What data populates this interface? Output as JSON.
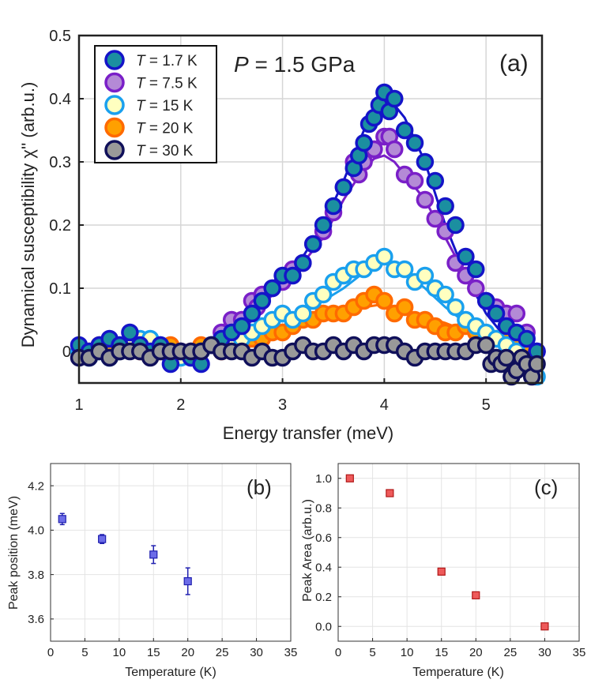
{
  "chart_data": [
    {
      "id": "a",
      "type": "scatter",
      "panel_label": "(a)",
      "annotation_prefix": "P",
      "annotation_value": " = 1.5 GPa",
      "xlabel": "Energy transfer (meV)",
      "ylabel": "Dynamical susceptibility χ'' (arb.u.)",
      "xlim": [
        1,
        5.55
      ],
      "ylim": [
        -0.05,
        0.5
      ],
      "xticks": [
        1,
        2,
        3,
        4,
        5
      ],
      "yticks": [
        0,
        0.1,
        0.2,
        0.3,
        0.4,
        0.5
      ],
      "ytick_labels": [
        "0",
        "0.1",
        "0.2",
        "0.3",
        "0.4",
        "0.5"
      ],
      "grid": true,
      "legend_position": "top-left",
      "series": [
        {
          "name": "1.7 K",
          "T_label": "T",
          "T_value": " =  1.7 K",
          "fill": "#1b8fa0",
          "edge": "#1414c8",
          "line": "#1414c8",
          "x": [
            1.0,
            1.1,
            1.2,
            1.3,
            1.4,
            1.5,
            1.6,
            1.7,
            1.8,
            1.9,
            2.0,
            2.1,
            2.2,
            2.3,
            2.4,
            2.5,
            2.6,
            2.7,
            2.8,
            2.9,
            3.0,
            3.1,
            3.2,
            3.3,
            3.4,
            3.5,
            3.6,
            3.7,
            3.75,
            3.8,
            3.85,
            3.9,
            3.95,
            4.0,
            4.05,
            4.1,
            4.2,
            4.3,
            4.4,
            4.5,
            4.6,
            4.7,
            4.8,
            4.9,
            5.0,
            5.1,
            5.2,
            5.3,
            5.4,
            5.5
          ],
          "y": [
            0.01,
            0.0,
            0.01,
            0.02,
            0.01,
            0.03,
            0.01,
            0.0,
            0.01,
            -0.02,
            0.0,
            -0.01,
            -0.02,
            0.01,
            0.02,
            0.03,
            0.04,
            0.06,
            0.08,
            0.1,
            0.12,
            0.12,
            0.14,
            0.17,
            0.2,
            0.23,
            0.26,
            0.29,
            0.31,
            0.33,
            0.36,
            0.37,
            0.39,
            0.41,
            0.38,
            0.4,
            0.35,
            0.33,
            0.3,
            0.27,
            0.23,
            0.2,
            0.15,
            0.13,
            0.08,
            0.06,
            0.04,
            0.03,
            0.02,
            0.0
          ],
          "fit_x": [
            1.0,
            2.4,
            2.6,
            2.8,
            3.0,
            3.2,
            3.4,
            3.6,
            3.8,
            3.9,
            4.0,
            4.1,
            4.2,
            4.4,
            4.6,
            4.8,
            5.0,
            5.2,
            5.5
          ],
          "fit_y": [
            0.0,
            0.0,
            0.03,
            0.07,
            0.12,
            0.15,
            0.2,
            0.27,
            0.35,
            0.38,
            0.395,
            0.39,
            0.37,
            0.3,
            0.2,
            0.12,
            0.06,
            0.02,
            0.0
          ]
        },
        {
          "name": "7.5 K",
          "T_label": "T",
          "T_value": " =  7.5 K",
          "fill": "#b48ad6",
          "edge": "#7a1fc8",
          "line": "#7a1fc8",
          "x": [
            2.4,
            2.5,
            2.6,
            2.7,
            2.75,
            2.8,
            2.9,
            3.0,
            3.1,
            3.2,
            3.3,
            3.4,
            3.5,
            3.6,
            3.7,
            3.75,
            3.8,
            3.9,
            4.0,
            4.05,
            4.1,
            4.2,
            4.3,
            4.4,
            4.5,
            4.6,
            4.7,
            4.8,
            4.9,
            5.0,
            5.1,
            5.2,
            5.3,
            5.4,
            5.5
          ],
          "y": [
            0.03,
            0.05,
            0.05,
            0.08,
            0.07,
            0.09,
            0.1,
            0.11,
            0.13,
            0.14,
            0.17,
            0.19,
            0.22,
            0.26,
            0.3,
            0.28,
            0.3,
            0.32,
            0.34,
            0.34,
            0.32,
            0.28,
            0.27,
            0.24,
            0.21,
            0.19,
            0.14,
            0.12,
            0.1,
            0.08,
            0.07,
            0.06,
            0.06,
            0.03,
            0.0
          ],
          "fit_x": [
            1.0,
            2.4,
            2.6,
            2.8,
            3.0,
            3.2,
            3.4,
            3.6,
            3.8,
            3.9,
            4.0,
            4.1,
            4.2,
            4.4,
            4.6,
            4.8,
            5.0,
            5.2,
            5.5
          ],
          "fit_y": [
            0.0,
            0.0,
            0.03,
            0.07,
            0.11,
            0.14,
            0.18,
            0.24,
            0.29,
            0.305,
            0.31,
            0.3,
            0.28,
            0.24,
            0.18,
            0.12,
            0.07,
            0.04,
            0.0
          ]
        },
        {
          "name": "15 K",
          "T_label": "T",
          "T_value": " =  15 K",
          "fill": "#ffffc0",
          "edge": "#1aa0ee",
          "line": "#1aa0ee",
          "x": [
            1.0,
            1.1,
            1.2,
            1.3,
            1.4,
            1.5,
            1.6,
            1.7,
            1.8,
            1.9,
            2.0,
            2.1,
            2.2,
            2.3,
            2.4,
            2.5,
            2.6,
            2.7,
            2.8,
            2.9,
            3.0,
            3.1,
            3.2,
            3.3,
            3.4,
            3.5,
            3.6,
            3.7,
            3.8,
            3.9,
            4.0,
            4.1,
            4.2,
            4.3,
            4.4,
            4.5,
            4.6,
            4.7,
            4.8,
            4.9,
            5.0,
            5.1,
            5.2,
            5.3,
            5.4,
            5.5
          ],
          "y": [
            0.0,
            -0.01,
            0.0,
            -0.01,
            0.0,
            0.01,
            0.02,
            0.02,
            0.01,
            -0.01,
            -0.01,
            -0.01,
            0.0,
            0.01,
            0.01,
            0.02,
            0.02,
            0.03,
            0.04,
            0.05,
            0.06,
            0.05,
            0.06,
            0.08,
            0.09,
            0.11,
            0.12,
            0.13,
            0.13,
            0.14,
            0.15,
            0.13,
            0.13,
            0.11,
            0.12,
            0.1,
            0.09,
            0.07,
            0.05,
            0.04,
            0.03,
            0.02,
            0.01,
            0.0,
            -0.02,
            -0.04
          ],
          "fit_x": [
            1.0,
            2.5,
            2.8,
            3.0,
            3.2,
            3.4,
            3.6,
            3.8,
            4.0,
            4.2,
            4.4,
            4.6,
            4.8,
            5.0,
            5.3,
            5.5
          ],
          "fit_y": [
            0.0,
            0.0,
            0.02,
            0.04,
            0.06,
            0.08,
            0.1,
            0.125,
            0.14,
            0.125,
            0.1,
            0.07,
            0.045,
            0.02,
            0.0,
            0.0
          ]
        },
        {
          "name": "20 K",
          "T_label": "T",
          "T_value": " =  20 K",
          "fill": "#ffa000",
          "edge": "#ff6a00",
          "line": "#ff6a00",
          "x": [
            1.0,
            1.1,
            1.2,
            1.3,
            1.4,
            1.5,
            1.6,
            1.7,
            1.8,
            1.9,
            2.0,
            2.1,
            2.2,
            2.3,
            2.4,
            2.5,
            2.6,
            2.7,
            2.8,
            2.9,
            3.0,
            3.1,
            3.2,
            3.3,
            3.4,
            3.5,
            3.6,
            3.7,
            3.8,
            3.9,
            4.0,
            4.1,
            4.2,
            4.3,
            4.4,
            4.5,
            4.6,
            4.7,
            4.8,
            4.9,
            5.0,
            5.1,
            5.2,
            5.3,
            5.4
          ],
          "y": [
            0.0,
            0.0,
            0.01,
            0.0,
            0.0,
            0.01,
            0.0,
            0.01,
            0.0,
            0.01,
            0.0,
            0.0,
            0.01,
            0.01,
            0.0,
            0.01,
            0.01,
            0.02,
            0.02,
            0.03,
            0.03,
            0.04,
            0.05,
            0.05,
            0.06,
            0.06,
            0.06,
            0.07,
            0.08,
            0.09,
            0.08,
            0.06,
            0.07,
            0.05,
            0.05,
            0.04,
            0.03,
            0.03,
            0.04,
            0.03,
            0.02,
            0.02,
            0.02,
            0.01,
            0.0
          ],
          "fit_x": [
            1.0,
            2.2,
            2.6,
            3.0,
            3.4,
            3.8,
            4.0,
            4.2,
            4.6,
            5.0,
            5.3,
            5.5
          ],
          "fit_y": [
            0.0,
            0.0,
            0.015,
            0.035,
            0.055,
            0.07,
            0.075,
            0.065,
            0.045,
            0.02,
            0.005,
            0.0
          ]
        },
        {
          "name": "30 K",
          "T_label": "T",
          "T_value": " =  30 K",
          "fill": "#999999",
          "edge": "#10105a",
          "line": "#10105a",
          "x": [
            1.0,
            1.1,
            1.2,
            1.3,
            1.4,
            1.5,
            1.6,
            1.7,
            1.8,
            1.9,
            2.0,
            2.1,
            2.2,
            2.3,
            2.4,
            2.5,
            2.6,
            2.7,
            2.8,
            2.9,
            3.0,
            3.1,
            3.2,
            3.3,
            3.4,
            3.5,
            3.6,
            3.7,
            3.8,
            3.9,
            4.0,
            4.1,
            4.2,
            4.3,
            4.4,
            4.5,
            4.6,
            4.7,
            4.8,
            4.9,
            5.0,
            5.05,
            5.1,
            5.15,
            5.2,
            5.25,
            5.3,
            5.35,
            5.4,
            5.45,
            5.5
          ],
          "y": [
            -0.01,
            -0.01,
            0.0,
            -0.01,
            0.0,
            0.0,
            0.0,
            -0.01,
            0.0,
            0.0,
            0.0,
            0.0,
            0.0,
            0.01,
            0.0,
            0.0,
            0.0,
            -0.01,
            0.0,
            -0.01,
            -0.01,
            0.0,
            0.01,
            0.0,
            0.0,
            0.01,
            0.0,
            0.01,
            0.0,
            0.01,
            0.01,
            0.01,
            0.0,
            -0.01,
            0.0,
            0.0,
            0.0,
            0.0,
            0.0,
            0.01,
            0.01,
            -0.02,
            -0.01,
            -0.02,
            -0.01,
            -0.04,
            -0.03,
            -0.01,
            -0.02,
            -0.04,
            -0.02
          ],
          "fit_x": [
            1.0,
            5.5
          ],
          "fit_y": [
            0.0,
            0.0
          ]
        }
      ]
    },
    {
      "id": "b",
      "type": "scatter",
      "panel_label": "(b)",
      "xlabel": "Temperature (K)",
      "ylabel": "Peak position (meV)",
      "xlim": [
        0,
        35
      ],
      "ylim": [
        3.5,
        4.3
      ],
      "xticks": [
        0,
        5,
        10,
        15,
        20,
        25,
        30,
        35
      ],
      "yticks": [
        3.6,
        3.8,
        4.0,
        4.2
      ],
      "ytick_labels": [
        "3.6",
        "3.8",
        "4.0",
        "4.2"
      ],
      "grid": true,
      "marker_fill": "#6c6ce8",
      "marker_edge": "#2020b0",
      "x": [
        1.7,
        7.5,
        15,
        20
      ],
      "y": [
        4.05,
        3.96,
        3.89,
        3.77
      ],
      "yerr": [
        0.025,
        0.02,
        0.04,
        0.06
      ]
    },
    {
      "id": "c",
      "type": "scatter",
      "panel_label": "(c)",
      "xlabel": "Temperature (K)",
      "ylabel": "Peak Area (arb.u.)",
      "xlim": [
        0,
        35
      ],
      "ylim": [
        -0.1,
        1.1
      ],
      "xticks": [
        0,
        5,
        10,
        15,
        20,
        25,
        30,
        35
      ],
      "yticks": [
        0.0,
        0.2,
        0.4,
        0.6,
        0.8,
        1.0
      ],
      "ytick_labels": [
        "0.0",
        "0.2",
        "0.4",
        "0.6",
        "0.8",
        "1.0"
      ],
      "grid": true,
      "marker_fill": "#ee5a5a",
      "marker_edge": "#b01818",
      "x": [
        1.7,
        7.5,
        15,
        20,
        30
      ],
      "y": [
        1.0,
        0.9,
        0.37,
        0.21,
        0.0
      ],
      "yerr": [
        0,
        0,
        0,
        0,
        0
      ]
    }
  ]
}
